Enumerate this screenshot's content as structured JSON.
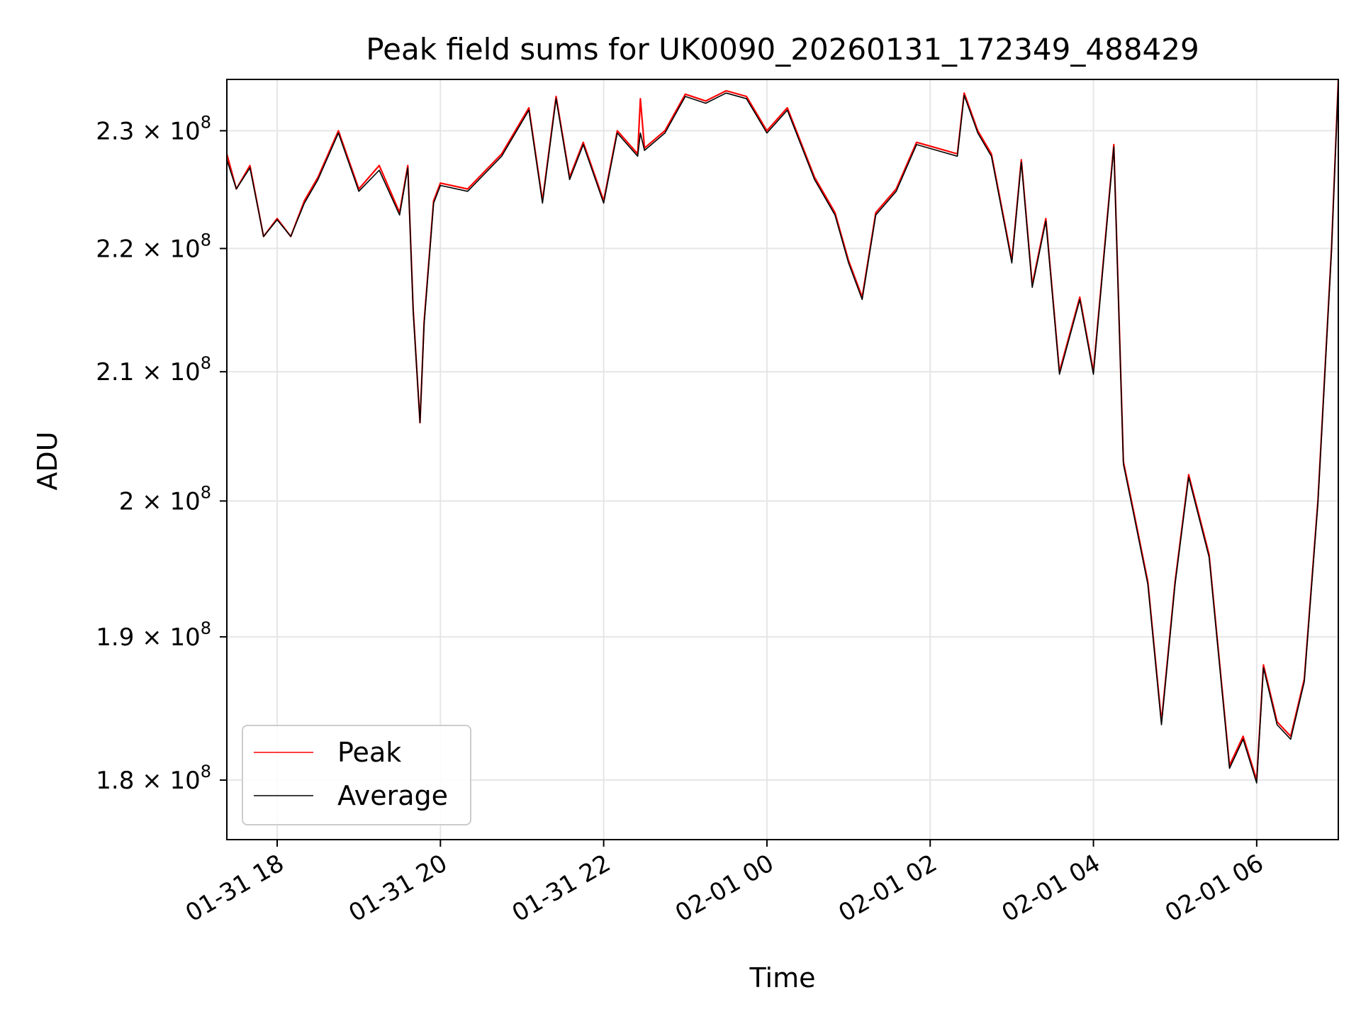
{
  "chart_data": {
    "type": "line",
    "title": "Peak field sums for UK0090_20260131_172349_488429",
    "xlabel": "Time",
    "ylabel": "ADU",
    "x_axis": {
      "kind": "datetime",
      "range": [
        "2026-01-31 17:23",
        "2026-02-01 07:00"
      ],
      "ticks": [
        {
          "value": "2026-01-31 18:00",
          "label": "01-31 18"
        },
        {
          "value": "2026-01-31 20:00",
          "label": "01-31 20"
        },
        {
          "value": "2026-01-31 22:00",
          "label": "01-31 22"
        },
        {
          "value": "2026-02-01 00:00",
          "label": "02-01 00"
        },
        {
          "value": "2026-02-01 02:00",
          "label": "02-01 02"
        },
        {
          "value": "2026-02-01 04:00",
          "label": "02-01 04"
        },
        {
          "value": "2026-02-01 06:00",
          "label": "02-01 06"
        }
      ]
    },
    "y_axis": {
      "scale": "log",
      "range": [
        176000000,
        234500000
      ],
      "ticks": [
        {
          "value": 180000000,
          "mant": "1.8 × 10",
          "exp": "8"
        },
        {
          "value": 190000000,
          "mant": "1.9 × 10",
          "exp": "8"
        },
        {
          "value": 200000000,
          "mant": "2 × 10",
          "exp": "8"
        },
        {
          "value": 210000000,
          "mant": "2.1 × 10",
          "exp": "8"
        },
        {
          "value": 220000000,
          "mant": "2.2 × 10",
          "exp": "8"
        },
        {
          "value": 230000000,
          "mant": "2.3 × 10",
          "exp": "8"
        }
      ]
    },
    "grid": true,
    "legend_placement": "lower-left",
    "colors": {
      "peak": "#ff0000",
      "average": "#000000",
      "grid": "#e6e6e6"
    },
    "series": [
      {
        "name": "Peak",
        "x": [
          "2026-01-31 17:23",
          "2026-01-31 17:30",
          "2026-01-31 17:40",
          "2026-01-31 17:50",
          "2026-01-31 18:00",
          "2026-01-31 18:10",
          "2026-01-31 18:20",
          "2026-01-31 18:30",
          "2026-01-31 18:45",
          "2026-01-31 19:00",
          "2026-01-31 19:15",
          "2026-01-31 19:30",
          "2026-01-31 19:36",
          "2026-01-31 19:40",
          "2026-01-31 19:45",
          "2026-01-31 19:48",
          "2026-01-31 19:55",
          "2026-01-31 20:00",
          "2026-01-31 20:20",
          "2026-01-31 20:45",
          "2026-01-31 21:05",
          "2026-01-31 21:15",
          "2026-01-31 21:25",
          "2026-01-31 21:35",
          "2026-01-31 21:45",
          "2026-01-31 22:00",
          "2026-01-31 22:10",
          "2026-01-31 22:25",
          "2026-01-31 22:27",
          "2026-01-31 22:30",
          "2026-01-31 22:45",
          "2026-01-31 23:00",
          "2026-01-31 23:15",
          "2026-01-31 23:30",
          "2026-01-31 23:45",
          "2026-02-01 00:00",
          "2026-02-01 00:15",
          "2026-02-01 00:35",
          "2026-02-01 00:50",
          "2026-02-01 01:00",
          "2026-02-01 01:10",
          "2026-02-01 01:20",
          "2026-02-01 01:35",
          "2026-02-01 01:50",
          "2026-02-01 02:05",
          "2026-02-01 02:20",
          "2026-02-01 02:25",
          "2026-02-01 02:35",
          "2026-02-01 02:45",
          "2026-02-01 02:55",
          "2026-02-01 03:00",
          "2026-02-01 03:07",
          "2026-02-01 03:15",
          "2026-02-01 03:25",
          "2026-02-01 03:35",
          "2026-02-01 03:50",
          "2026-02-01 04:00",
          "2026-02-01 04:15",
          "2026-02-01 04:22",
          "2026-02-01 04:30",
          "2026-02-01 04:40",
          "2026-02-01 04:50",
          "2026-02-01 05:00",
          "2026-02-01 05:10",
          "2026-02-01 05:25",
          "2026-02-01 05:40",
          "2026-02-01 05:50",
          "2026-02-01 06:00",
          "2026-02-01 06:05",
          "2026-02-01 06:15",
          "2026-02-01 06:25",
          "2026-02-01 06:35",
          "2026-02-01 06:45",
          "2026-02-01 06:55",
          "2026-02-01 07:00"
        ],
        "y": [
          228000000,
          225000000,
          227000000,
          221000000,
          222500000,
          221000000,
          224000000,
          226000000,
          230000000,
          225000000,
          227000000,
          223000000,
          227000000,
          215000000,
          206000000,
          214000000,
          224000000,
          225500000,
          225000000,
          228000000,
          232000000,
          224000000,
          233000000,
          226000000,
          229000000,
          224000000,
          230000000,
          228000000,
          232800000,
          228500000,
          230000000,
          233200000,
          232600000,
          233500000,
          233000000,
          230000000,
          232000000,
          226000000,
          223000000,
          219000000,
          216000000,
          223000000,
          225000000,
          229000000,
          228500000,
          228000000,
          233300000,
          230000000,
          228000000,
          222000000,
          219000000,
          227500000,
          217000000,
          222500000,
          210000000,
          216000000,
          210000000,
          228800000,
          203000000,
          199000000,
          194000000,
          184000000,
          194000000,
          202000000,
          196000000,
          181000000,
          183000000,
          180000000,
          188000000,
          184000000,
          183000000,
          187000000,
          200000000,
          220000000,
          234500000
        ]
      },
      {
        "name": "Average",
        "x": [
          "2026-01-31 17:23",
          "2026-01-31 17:30",
          "2026-01-31 17:40",
          "2026-01-31 17:50",
          "2026-01-31 18:00",
          "2026-01-31 18:10",
          "2026-01-31 18:20",
          "2026-01-31 18:30",
          "2026-01-31 18:45",
          "2026-01-31 19:00",
          "2026-01-31 19:15",
          "2026-01-31 19:30",
          "2026-01-31 19:36",
          "2026-01-31 19:40",
          "2026-01-31 19:45",
          "2026-01-31 19:48",
          "2026-01-31 19:55",
          "2026-01-31 20:00",
          "2026-01-31 20:20",
          "2026-01-31 20:45",
          "2026-01-31 21:05",
          "2026-01-31 21:15",
          "2026-01-31 21:25",
          "2026-01-31 21:35",
          "2026-01-31 21:45",
          "2026-01-31 22:00",
          "2026-01-31 22:10",
          "2026-01-31 22:25",
          "2026-01-31 22:27",
          "2026-01-31 22:30",
          "2026-01-31 22:45",
          "2026-01-31 23:00",
          "2026-01-31 23:15",
          "2026-01-31 23:30",
          "2026-01-31 23:45",
          "2026-02-01 00:00",
          "2026-02-01 00:15",
          "2026-02-01 00:35",
          "2026-02-01 00:50",
          "2026-02-01 01:00",
          "2026-02-01 01:10",
          "2026-02-01 01:20",
          "2026-02-01 01:35",
          "2026-02-01 01:50",
          "2026-02-01 02:05",
          "2026-02-01 02:20",
          "2026-02-01 02:25",
          "2026-02-01 02:35",
          "2026-02-01 02:45",
          "2026-02-01 02:55",
          "2026-02-01 03:00",
          "2026-02-01 03:07",
          "2026-02-01 03:15",
          "2026-02-01 03:25",
          "2026-02-01 03:35",
          "2026-02-01 03:50",
          "2026-02-01 04:00",
          "2026-02-01 04:15",
          "2026-02-01 04:22",
          "2026-02-01 04:30",
          "2026-02-01 04:40",
          "2026-02-01 04:50",
          "2026-02-01 05:00",
          "2026-02-01 05:10",
          "2026-02-01 05:25",
          "2026-02-01 05:40",
          "2026-02-01 05:50",
          "2026-02-01 06:00",
          "2026-02-01 06:05",
          "2026-02-01 06:15",
          "2026-02-01 06:25",
          "2026-02-01 06:35",
          "2026-02-01 06:45",
          "2026-02-01 06:55",
          "2026-02-01 07:00"
        ],
        "y": [
          227500000,
          225000000,
          226800000,
          221000000,
          222400000,
          221000000,
          223800000,
          225800000,
          229800000,
          224800000,
          226600000,
          222800000,
          226800000,
          214800000,
          206000000,
          213800000,
          223800000,
          225300000,
          224800000,
          227800000,
          231800000,
          223800000,
          232800000,
          225800000,
          228800000,
          223800000,
          229800000,
          227800000,
          229800000,
          228300000,
          229800000,
          233000000,
          232400000,
          233300000,
          232800000,
          229800000,
          231800000,
          225800000,
          222800000,
          218800000,
          215800000,
          222800000,
          224800000,
          228800000,
          228300000,
          227800000,
          233100000,
          229800000,
          227800000,
          221800000,
          218800000,
          227300000,
          216800000,
          222300000,
          209800000,
          215800000,
          209800000,
          228600000,
          202800000,
          198800000,
          193800000,
          183800000,
          193800000,
          201800000,
          195800000,
          180800000,
          182800000,
          179800000,
          187800000,
          183800000,
          182800000,
          186800000,
          199800000,
          219800000,
          234300000
        ]
      }
    ]
  }
}
